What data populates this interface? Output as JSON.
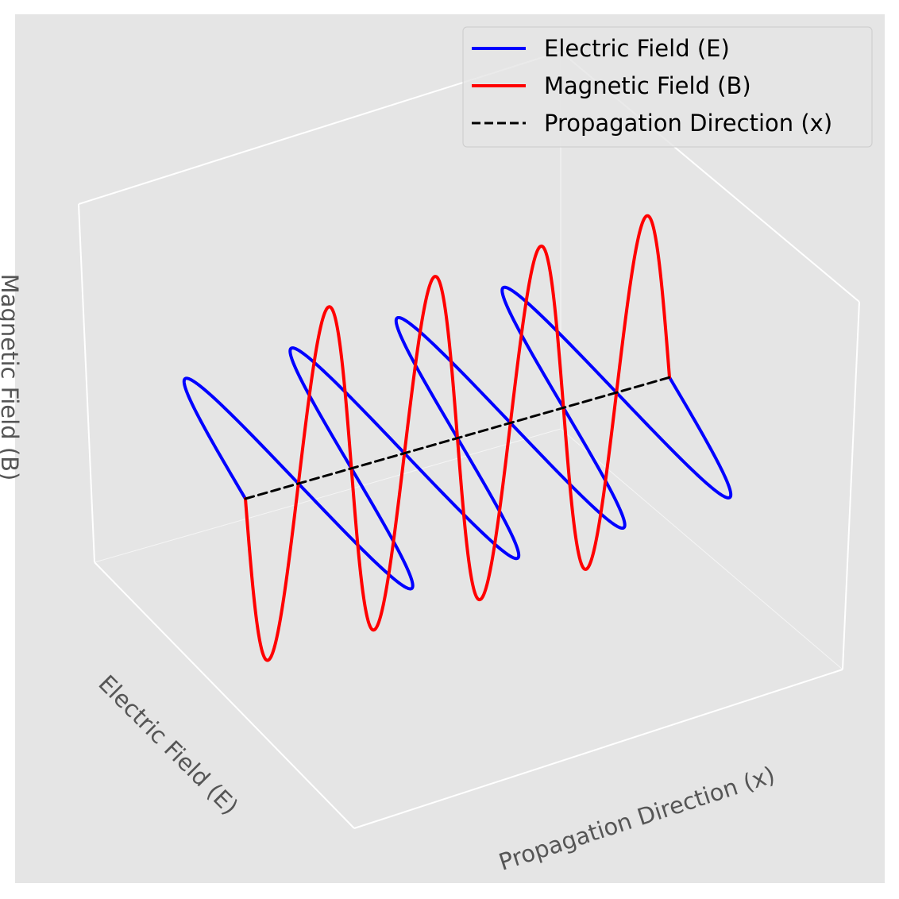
{
  "chart_data": {
    "type": "line",
    "projection": "3d",
    "xlabel": "Propagation Direction (x)",
    "ylabel": "Electric Field (E)",
    "zlabel": "Magnetic Field (B)",
    "grid": true,
    "legend_position": "top-right",
    "x_range": [
      0,
      4
    ],
    "y_range": [
      -1,
      1
    ],
    "z_range": [
      -1,
      1
    ],
    "cycles": 4,
    "series": [
      {
        "name": "Electric Field (E)",
        "color": "#0000ff",
        "style": "solid",
        "x": [
          0,
          0.25,
          0.5,
          0.75,
          1,
          1.25,
          1.5,
          1.75,
          2,
          2.25,
          2.5,
          2.75,
          3,
          3.25,
          3.5,
          3.75,
          4
        ],
        "y": [
          0,
          1,
          0,
          -1,
          0,
          1,
          0,
          -1,
          0,
          1,
          0,
          -1,
          0,
          1,
          0,
          -1,
          0
        ],
        "z": [
          0,
          0,
          0,
          0,
          0,
          0,
          0,
          0,
          0,
          0,
          0,
          0,
          0,
          0,
          0,
          0,
          0
        ]
      },
      {
        "name": "Magnetic Field (B)",
        "color": "#ff0000",
        "style": "solid",
        "x": [
          0,
          0.25,
          0.5,
          0.75,
          1,
          1.25,
          1.5,
          1.75,
          2,
          2.25,
          2.5,
          2.75,
          3,
          3.25,
          3.5,
          3.75,
          4
        ],
        "y": [
          0,
          0,
          0,
          0,
          0,
          0,
          0,
          0,
          0,
          0,
          0,
          0,
          0,
          0,
          0,
          0,
          0
        ],
        "z": [
          0,
          -1,
          0,
          1,
          0,
          -1,
          0,
          1,
          0,
          -1,
          0,
          1,
          0,
          -1,
          0,
          1,
          0
        ]
      },
      {
        "name": "Propagation Direction (x)",
        "color": "#000000",
        "style": "dashed",
        "x": [
          0,
          4
        ],
        "y": [
          0,
          0
        ],
        "z": [
          0,
          0
        ]
      }
    ]
  },
  "colors": {
    "plot_background": "#e5e5e5",
    "pane_edges": "#ffffff",
    "legend_background": "#e5e5e5",
    "legend_border": "#cccccc"
  }
}
